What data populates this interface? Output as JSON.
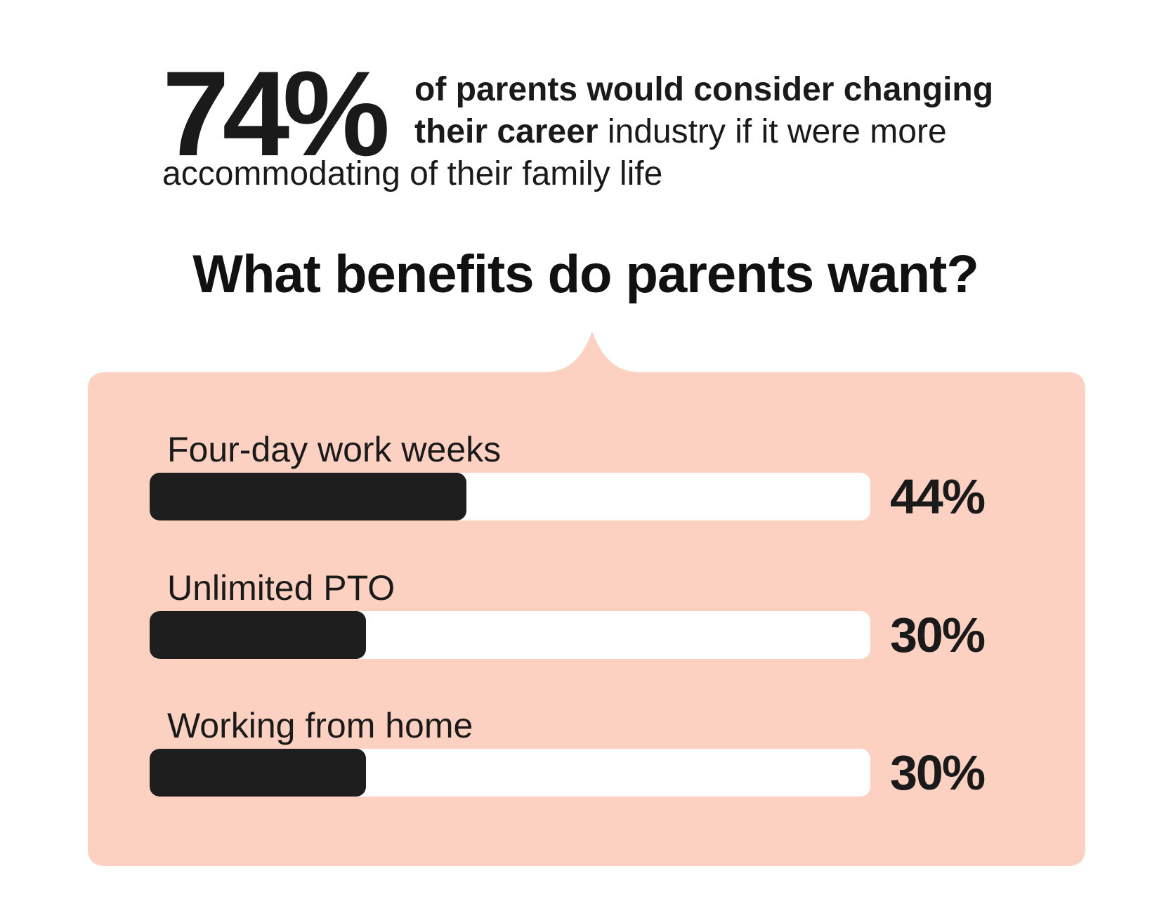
{
  "headline_stat": {
    "value": "74%",
    "line1_bold": "of parents would consider changing",
    "line2_bold": "their career",
    "line2_rest": " industry if it were more",
    "line3": "accommodating of their family life"
  },
  "title": "What benefits do parents want?",
  "colors": {
    "panel": "#fcd1c2",
    "bar_fill": "#1e1e1e",
    "bar_track": "#ffffff",
    "text": "#1a1a1a"
  },
  "chart_data": {
    "type": "bar",
    "orientation": "horizontal",
    "title": "What benefits do parents want?",
    "categories": [
      "Four-day work weeks",
      "Unlimited PTO",
      "Working from home"
    ],
    "values": [
      44,
      30,
      30
    ],
    "value_labels": [
      "44%",
      "30%",
      "30%"
    ],
    "xlim": [
      0,
      100
    ],
    "xlabel": "",
    "ylabel": "",
    "grid": false
  }
}
